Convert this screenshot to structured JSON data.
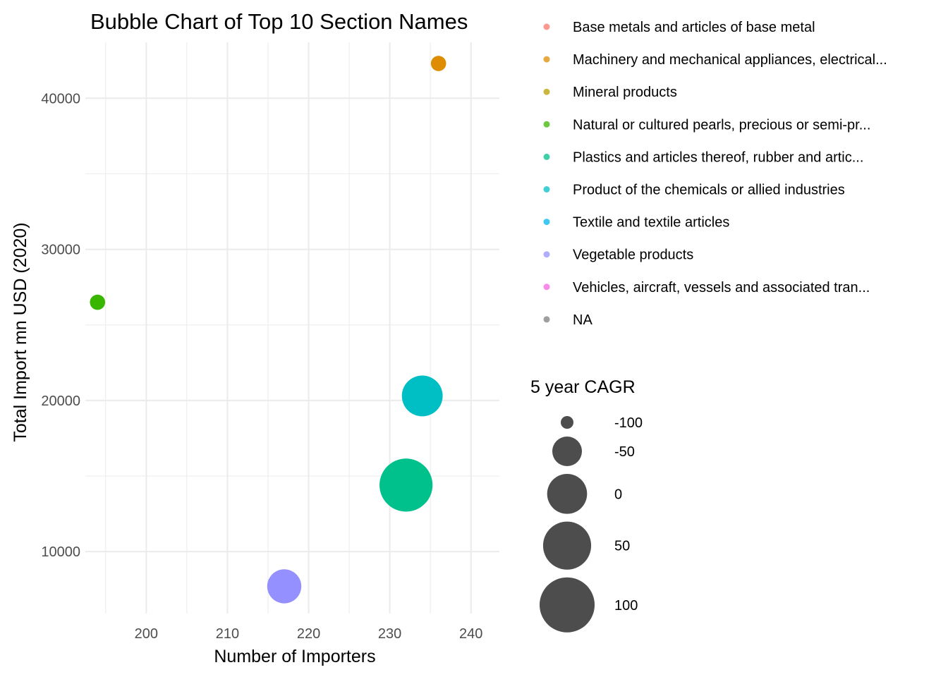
{
  "chart_data": {
    "type": "scatter",
    "title": "Bubble Chart of Top 10 Section Names",
    "xlabel": "Number of Importers",
    "ylabel": "Total Import mn USD (2020)",
    "xlim": [
      192.5,
      243.5
    ],
    "ylim": [
      5900,
      43700
    ],
    "x_ticks": [
      200,
      210,
      220,
      230,
      240
    ],
    "y_ticks": [
      10000,
      20000,
      30000,
      40000
    ],
    "grid": true,
    "size_scale": {
      "min_value": -100,
      "max_value": 100
    },
    "points": [
      {
        "category": "Machinery and mechanical appliances, electrical...",
        "x": 236,
        "y": 42300,
        "cagr": -95,
        "color": "#DE8C00"
      },
      {
        "category": "Natural or cultured pearls, precious or semi-pr...",
        "x": 194,
        "y": 26500,
        "cagr": -95,
        "color": "#39B600"
      },
      {
        "category": "Product of the chemicals or allied industries",
        "x": 234,
        "y": 20300,
        "cagr": 5,
        "color": "#00BFC4"
      },
      {
        "category": "Plastics and articles thereof, rubber and artic...",
        "x": 232,
        "y": 14400,
        "cagr": 85,
        "color": "#00C08B"
      },
      {
        "category": "Vegetable products",
        "x": 217,
        "y": 7700,
        "cagr": -30,
        "color": "#9590FF"
      }
    ],
    "legend_color": {
      "placement": "right",
      "items": [
        {
          "label": "Base metals and articles of base metal",
          "color": "#F8766D"
        },
        {
          "label": "Machinery and mechanical appliances, electrical...",
          "color": "#DE8C00"
        },
        {
          "label": "Mineral products",
          "color": "#B79F00"
        },
        {
          "label": "Natural or cultured pearls, precious or semi-pr...",
          "color": "#39B600"
        },
        {
          "label": "Plastics and articles thereof, rubber and artic...",
          "color": "#00C08B"
        },
        {
          "label": "Product of the chemicals or allied industries",
          "color": "#00BFC4"
        },
        {
          "label": "Textile and textile articles",
          "color": "#00B4F0"
        },
        {
          "label": "Vegetable products",
          "color": "#9590FF"
        },
        {
          "label": "Vehicles, aircraft, vessels and associated tran...",
          "color": "#F564E3"
        },
        {
          "label": "NA",
          "color": "#7F7F7F"
        }
      ]
    },
    "legend_size": {
      "title": "5 year CAGR",
      "placement": "right",
      "items": [
        {
          "label": "-100",
          "value": -100
        },
        {
          "label": "-50",
          "value": -50
        },
        {
          "label": "0",
          "value": 0
        },
        {
          "label": "50",
          "value": 50
        },
        {
          "label": "100",
          "value": 100
        }
      ],
      "color": "#4D4D4D"
    }
  }
}
